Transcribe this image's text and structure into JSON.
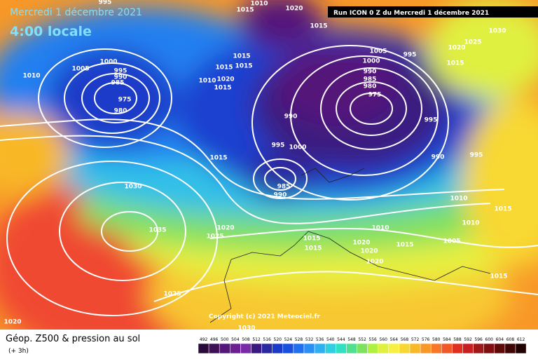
{
  "header": {
    "date": "Mercredi 1 décembre 2021",
    "time": "4:00 locale",
    "run": "Run ICON 0 Z du Mercredi 1 décembre 2021"
  },
  "copyright": "Copyright (c) 2021 Meteociel.fr",
  "isobar_labels": [
    995,
    1010,
    1015,
    1020,
    1015,
    1030,
    1025,
    1020,
    1015,
    1005,
    1010,
    1000,
    995,
    990,
    985,
    975,
    980,
    1015,
    1015,
    1015,
    1020,
    1015,
    1010,
    1005,
    995,
    1000,
    990,
    985,
    980,
    975,
    990,
    995,
    1000,
    995,
    990,
    995,
    1015,
    985,
    990,
    1030,
    1035,
    1020,
    1025,
    1010,
    1015,
    1010,
    1005,
    1015,
    1020,
    1020,
    1020,
    1015,
    1015,
    1025,
    1020,
    1030,
    1015,
    1010
  ],
  "footer": {
    "title": "Géop. Z500 & pression au sol",
    "step": "(+ 3h)"
  },
  "legend": {
    "ticks": [
      492,
      496,
      500,
      504,
      508,
      512,
      516,
      520,
      524,
      528,
      532,
      536,
      540,
      544,
      548,
      552,
      556,
      560,
      564,
      568,
      572,
      576,
      580,
      584,
      588,
      592,
      596,
      600,
      604,
      608,
      612
    ],
    "colors": [
      "#2a0a3a",
      "#3d0f55",
      "#55177a",
      "#6a2090",
      "#7a2aa8",
      "#3a1a80",
      "#2a2aa0",
      "#1a3ac8",
      "#1a50e0",
      "#2070f0",
      "#2a90f5",
      "#30b0f0",
      "#30d0e0",
      "#30e0c0",
      "#50e090",
      "#80e060",
      "#b0f040",
      "#e0f040",
      "#f8f040",
      "#f8d830",
      "#f8b828",
      "#f89828",
      "#f87828",
      "#f05828",
      "#e03020",
      "#c82020",
      "#a01818",
      "#801010",
      "#600a0a",
      "#400505",
      "#200000"
    ]
  }
}
